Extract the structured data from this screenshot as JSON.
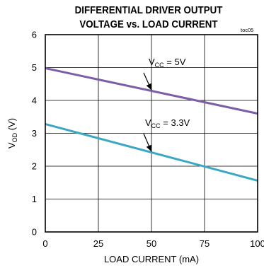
{
  "chart_data": {
    "type": "line",
    "title_line1": "DIFFERENTIAL DRIVER OUTPUT",
    "title_line2": "VOLTAGE vs. LOAD CURRENT",
    "tag": "toc05",
    "xlabel": "LOAD CURRENT (mA)",
    "ylabel_main": "V",
    "ylabel_sub": "OD",
    "ylabel_unit": " (V)",
    "xlim": [
      0,
      100
    ],
    "ylim": [
      0,
      6
    ],
    "xticks": [
      0,
      25,
      50,
      75,
      100
    ],
    "yticks": [
      0,
      1,
      2,
      3,
      4,
      5,
      6
    ],
    "grid": true,
    "series": [
      {
        "name": "VCC = 5V",
        "label_main": "V",
        "label_sub": "CC",
        "label_rest": " = 5V",
        "color": "#7b5ea7",
        "x": [
          0,
          100
        ],
        "y": [
          4.98,
          3.6
        ]
      },
      {
        "name": "VCC = 3.3V",
        "label_main": "V",
        "label_sub": "CC",
        "label_rest": " = 3.3V",
        "color": "#3aa7c4",
        "x": [
          0,
          100
        ],
        "y": [
          3.28,
          1.56
        ]
      }
    ]
  }
}
